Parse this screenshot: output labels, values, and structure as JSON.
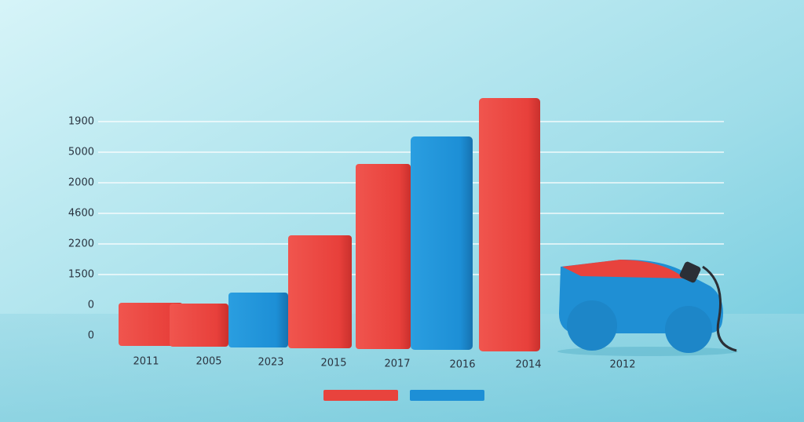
{
  "y_axis_labels": [
    "1900",
    "5000",
    "2000",
    "4600",
    "2200",
    "1500",
    "0",
    "0"
  ],
  "x_labels": [
    "2011",
    "2005",
    "2023",
    "2015",
    "2017",
    "2016",
    "2014",
    "2012"
  ]
}
